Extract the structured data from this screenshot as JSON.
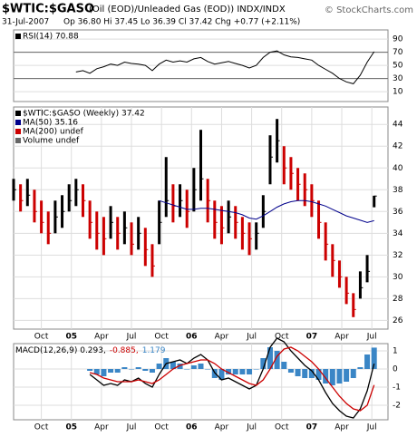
{
  "header": {
    "symbol": "$WTIC:$GASO",
    "description": "(Oil (EOD)/Unleaded Gas (EOD)) INDX/INDX",
    "source": "© StockCharts.com",
    "date": "31-Jul-2007",
    "quote": "Op 36.80 Hi 37.45 Lo 36.39 Cl 37.42 Chg +0.77 (+2.11%)"
  },
  "chart_data": [
    {
      "type": "line",
      "legend": [
        "RSI(14) 70.88"
      ],
      "legend_colors": [
        "#000000"
      ],
      "x": [
        0,
        3,
        6,
        9,
        12,
        15,
        18,
        21,
        24,
        27,
        30,
        33,
        36,
        39,
        42,
        45,
        48,
        51,
        54,
        57,
        60,
        63,
        66,
        69,
        72,
        75,
        78,
        81,
        84,
        87,
        90,
        93,
        96,
        99,
        102,
        105,
        108,
        111,
        114,
        117,
        120,
        123,
        126,
        129,
        132,
        135,
        138,
        141,
        144,
        147,
        150,
        153,
        156
      ],
      "xlim": [
        0,
        162
      ],
      "ylim": [
        -5,
        104
      ],
      "yticks": [
        10,
        30,
        50,
        70,
        90
      ],
      "hlines": [
        70,
        30
      ],
      "series": [
        {
          "color": "#000000",
          "values": [
            null,
            null,
            null,
            null,
            null,
            null,
            null,
            null,
            null,
            40,
            42,
            38,
            45,
            48,
            52,
            50,
            55,
            53,
            52,
            50,
            42,
            52,
            58,
            55,
            57,
            55,
            60,
            62,
            56,
            52,
            54,
            56,
            53,
            50,
            46,
            50,
            62,
            70,
            72,
            66,
            63,
            62,
            60,
            58,
            50,
            44,
            38,
            30,
            25,
            22,
            35,
            55,
            70.88
          ]
        }
      ]
    },
    {
      "type": "candlestick",
      "legend": [
        "$WTIC:$GASO (Weekly) 37.42",
        "MA(50) 35.16",
        "MA(200) undef",
        "Volume undef"
      ],
      "legend_colors": [
        "#000000",
        "#00008b",
        "#cc0000",
        "#666666"
      ],
      "x": [
        0,
        3,
        6,
        9,
        12,
        15,
        18,
        21,
        24,
        27,
        30,
        33,
        36,
        39,
        42,
        45,
        48,
        51,
        54,
        57,
        60,
        63,
        66,
        69,
        72,
        75,
        78,
        81,
        84,
        87,
        90,
        93,
        96,
        99,
        102,
        105,
        108,
        111,
        114,
        117,
        120,
        123,
        126,
        129,
        132,
        135,
        138,
        141,
        144,
        147,
        150,
        153,
        156
      ],
      "xlim": [
        0,
        162
      ],
      "ylim": [
        25.2,
        45.6
      ],
      "yticks": [
        26,
        28,
        30,
        32,
        34,
        36,
        38,
        40,
        42,
        44
      ],
      "xticks": [
        {
          "value": 12,
          "label": "Oct"
        },
        {
          "value": 25,
          "label": "05"
        },
        {
          "value": 38,
          "label": "Apr"
        },
        {
          "value": 51,
          "label": "Jul"
        },
        {
          "value": 64,
          "label": "Oct"
        },
        {
          "value": 77,
          "label": "06"
        },
        {
          "value": 90,
          "label": "Apr"
        },
        {
          "value": 103,
          "label": "Jul"
        },
        {
          "value": 116,
          "label": "Oct"
        },
        {
          "value": 129,
          "label": "07"
        },
        {
          "value": 142,
          "label": "Apr"
        },
        {
          "value": 155,
          "label": "Jul"
        }
      ],
      "up_color": "#000000",
      "down_color": "#cc0000",
      "high": [
        39,
        38.5,
        39,
        38,
        37,
        36,
        37,
        37.5,
        38.5,
        39,
        38.5,
        37,
        36,
        35.5,
        36.5,
        35.5,
        36,
        35,
        35.5,
        34.5,
        33,
        37,
        41,
        38.5,
        38.5,
        38,
        40,
        43.5,
        39,
        37,
        36.5,
        37,
        36.5,
        35.5,
        35,
        35,
        37.5,
        43,
        44.5,
        42,
        41,
        40,
        39.5,
        38.5,
        37,
        35,
        33,
        31.5,
        30,
        28.5,
        30.5,
        32,
        37.45
      ],
      "low": [
        37,
        36,
        36.5,
        35,
        34,
        33,
        34,
        34.5,
        36,
        36.5,
        35.5,
        33.5,
        32.5,
        32,
        33.5,
        32.5,
        33,
        32,
        32.5,
        31,
        30,
        33,
        35.5,
        35,
        35.5,
        34.5,
        36,
        37,
        35,
        33.5,
        33,
        34,
        33.5,
        32.5,
        32,
        32.5,
        34.5,
        38.5,
        40.5,
        38.5,
        38,
        37,
        36.5,
        35.5,
        33.5,
        31.5,
        30,
        29,
        27.5,
        26.3,
        28,
        29.5,
        36.39
      ],
      "values": [
        38,
        37,
        37.5,
        36,
        35,
        34,
        35.5,
        36,
        37,
        38,
        37,
        35,
        34,
        33.5,
        35,
        34,
        34.5,
        33,
        34,
        32.5,
        31,
        35,
        37,
        36.5,
        37,
        36,
        38,
        39,
        37,
        35,
        34.5,
        35.5,
        35,
        34,
        33.5,
        34,
        36,
        41,
        42.5,
        40,
        39.5,
        38.5,
        38,
        37,
        35,
        33,
        31.5,
        30,
        28.5,
        27,
        29,
        30.5,
        37.42
      ],
      "series": [
        {
          "color": "#00008b",
          "values": [
            null,
            null,
            null,
            null,
            null,
            null,
            null,
            null,
            null,
            null,
            null,
            null,
            null,
            null,
            null,
            null,
            null,
            null,
            null,
            null,
            null,
            37,
            36.8,
            36.6,
            36.4,
            36.2,
            36.2,
            36.3,
            36.3,
            36.2,
            36.1,
            36.0,
            35.9,
            35.7,
            35.4,
            35.3,
            35.6,
            36.0,
            36.4,
            36.7,
            36.9,
            37.0,
            37.0,
            36.9,
            36.7,
            36.5,
            36.2,
            35.9,
            35.6,
            35.4,
            35.2,
            35.0,
            35.16
          ]
        }
      ]
    },
    {
      "type": "macd",
      "legend": [
        "MACD(12,26,9) 0.293,",
        "-0.885,",
        "1.179"
      ],
      "legend_colors": [
        "#000000",
        "#cc0000",
        "#3a86c6"
      ],
      "x": [
        0,
        3,
        6,
        9,
        12,
        15,
        18,
        21,
        24,
        27,
        30,
        33,
        36,
        39,
        42,
        45,
        48,
        51,
        54,
        57,
        60,
        63,
        66,
        69,
        72,
        75,
        78,
        81,
        84,
        87,
        90,
        93,
        96,
        99,
        102,
        105,
        108,
        111,
        114,
        117,
        120,
        123,
        126,
        129,
        132,
        135,
        138,
        141,
        144,
        147,
        150,
        153,
        156
      ],
      "xlim": [
        0,
        162
      ],
      "ylim": [
        -2.8,
        1.4
      ],
      "yticks": [
        -2,
        -1,
        0,
        1
      ],
      "xticks": [
        {
          "value": 12,
          "label": "Oct"
        },
        {
          "value": 25,
          "label": "05"
        },
        {
          "value": 38,
          "label": "Apr"
        },
        {
          "value": 51,
          "label": "Jul"
        },
        {
          "value": 64,
          "label": "Oct"
        },
        {
          "value": 77,
          "label": "06"
        },
        {
          "value": 90,
          "label": "Apr"
        },
        {
          "value": 103,
          "label": "Jul"
        },
        {
          "value": 116,
          "label": "Oct"
        },
        {
          "value": 129,
          "label": "07"
        },
        {
          "value": 142,
          "label": "Apr"
        },
        {
          "value": 155,
          "label": "Jul"
        }
      ],
      "histogram": {
        "color": "#3a86c6",
        "values": [
          null,
          null,
          null,
          null,
          null,
          null,
          null,
          null,
          null,
          null,
          null,
          -0.1,
          -0.3,
          -0.4,
          -0.2,
          -0.2,
          0.1,
          0.0,
          0.1,
          -0.1,
          -0.2,
          0.3,
          0.6,
          0.4,
          0.3,
          0.0,
          0.2,
          0.3,
          0.0,
          -0.5,
          -0.6,
          -0.3,
          -0.3,
          -0.3,
          -0.3,
          0.0,
          0.6,
          1.2,
          1.0,
          0.4,
          -0.2,
          -0.4,
          -0.5,
          -0.5,
          -0.6,
          -0.8,
          -0.9,
          -0.8,
          -0.7,
          -0.5,
          0.1,
          0.8,
          1.179
        ]
      },
      "series": [
        {
          "color": "#000000",
          "values": [
            null,
            null,
            null,
            null,
            null,
            null,
            null,
            null,
            null,
            null,
            null,
            -0.3,
            -0.6,
            -0.9,
            -0.8,
            -0.9,
            -0.6,
            -0.7,
            -0.5,
            -0.8,
            -1.0,
            -0.3,
            0.3,
            0.4,
            0.5,
            0.3,
            0.6,
            0.8,
            0.5,
            -0.2,
            -0.6,
            -0.5,
            -0.7,
            -0.9,
            -1.1,
            -0.9,
            0.0,
            1.2,
            1.7,
            1.5,
            1.0,
            0.6,
            0.2,
            -0.1,
            -0.6,
            -1.3,
            -1.9,
            -2.3,
            -2.6,
            -2.7,
            -2.2,
            -1.2,
            0.293
          ]
        },
        {
          "color": "#cc0000",
          "values": [
            null,
            null,
            null,
            null,
            null,
            null,
            null,
            null,
            null,
            null,
            null,
            -0.2,
            -0.3,
            -0.5,
            -0.6,
            -0.7,
            -0.7,
            -0.7,
            -0.6,
            -0.7,
            -0.8,
            -0.6,
            -0.3,
            0.0,
            0.2,
            0.3,
            0.4,
            0.5,
            0.5,
            0.3,
            0.0,
            -0.2,
            -0.4,
            -0.6,
            -0.8,
            -0.9,
            -0.6,
            0.0,
            0.7,
            1.1,
            1.2,
            1.0,
            0.7,
            0.4,
            0.0,
            -0.5,
            -1.0,
            -1.5,
            -1.9,
            -2.2,
            -2.3,
            -2.0,
            -0.885
          ]
        }
      ]
    }
  ]
}
